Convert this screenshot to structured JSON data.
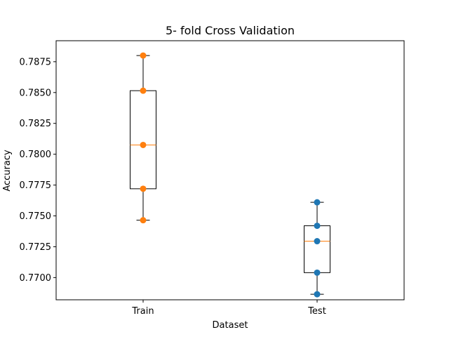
{
  "chart_data": {
    "type": "box",
    "title": "5- fold Cross Validation",
    "xlabel": "Dataset",
    "ylabel": "Accuracy",
    "ylim": [
      0.7682,
      0.7892
    ],
    "yticks": [
      "0.7700",
      "0.7725",
      "0.7750",
      "0.7775",
      "0.7800",
      "0.7825",
      "0.7850",
      "0.7875"
    ],
    "grid": false,
    "categories": [
      "Train",
      "Test"
    ],
    "boxes": [
      {
        "category": "Train",
        "whisker_low": 0.77465,
        "q1": 0.7772,
        "median": 0.78075,
        "q3": 0.78515,
        "whisker_high": 0.788
      },
      {
        "category": "Test",
        "whisker_low": 0.76865,
        "q1": 0.7704,
        "median": 0.77295,
        "q3": 0.7742,
        "whisker_high": 0.7761
      }
    ],
    "series": [
      {
        "category": "Train",
        "color": "#ff7f0e",
        "values": [
          0.788,
          0.78515,
          0.78075,
          0.7772,
          0.77465
        ]
      },
      {
        "category": "Test",
        "color": "#1f77b4",
        "values": [
          0.7761,
          0.7742,
          0.77295,
          0.7704,
          0.76865
        ]
      }
    ],
    "colors": {
      "median": "#ff7f0e",
      "box": "#000000"
    }
  }
}
